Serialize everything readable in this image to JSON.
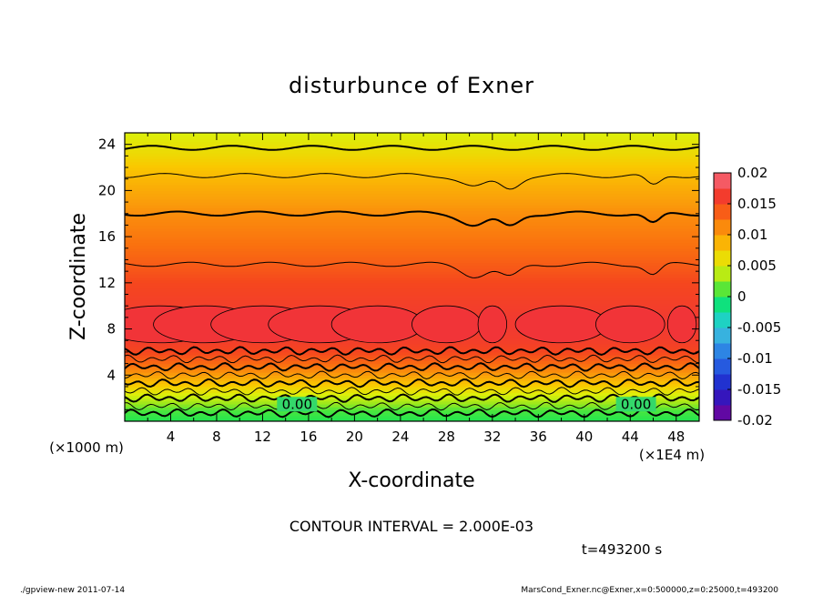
{
  "chart_data": {
    "type": "heatmap",
    "title": "disturbunce of Exner",
    "xlabel": "X-coordinate",
    "ylabel": "Z-coordinate",
    "x_unit": "(×1E4 m)",
    "y_unit": "(×1000 m)",
    "xlim": [
      0,
      50
    ],
    "ylim": [
      0,
      25
    ],
    "x_ticks": [
      4,
      8,
      12,
      16,
      20,
      24,
      28,
      32,
      36,
      40,
      44,
      48
    ],
    "y_ticks": [
      4,
      8,
      12,
      16,
      20,
      24
    ],
    "colorbar": {
      "ticks": [
        "0.02",
        "0.015",
        "0.01",
        "0.005",
        "0",
        "-0.005",
        "-0.01",
        "-0.015",
        "-0.02"
      ],
      "range": [
        -0.02,
        0.02
      ]
    },
    "contour_labels": [
      {
        "text": "0.00",
        "x": 15,
        "z": 1.0
      },
      {
        "text": "0.00",
        "x": 44.5,
        "z": 1.0
      }
    ],
    "profile": {
      "z": [
        0,
        1,
        2,
        3,
        4,
        5,
        6,
        7,
        8,
        9,
        10,
        11,
        12,
        13,
        14,
        15,
        16,
        17,
        18,
        19,
        20,
        21,
        22,
        23,
        24,
        25
      ],
      "value": [
        0.0,
        0.001,
        0.004,
        0.007,
        0.01,
        0.013,
        0.015,
        0.016,
        0.0165,
        0.0165,
        0.016,
        0.0155,
        0.015,
        0.0142,
        0.0135,
        0.0128,
        0.0122,
        0.0116,
        0.011,
        0.0102,
        0.0094,
        0.0086,
        0.0076,
        0.0066,
        0.0058,
        0.005
      ]
    },
    "contour_interval": "2.000E-03"
  },
  "annotations": {
    "contour_interval_text": "CONTOUR INTERVAL = 2.000E-03",
    "time_text": "t=493200 s",
    "footer_left": "./gpview-new   2011-07-14",
    "footer_right": "MarsCond_Exner.nc@Exner,x=0:500000,z=0:25000,t=493200"
  }
}
